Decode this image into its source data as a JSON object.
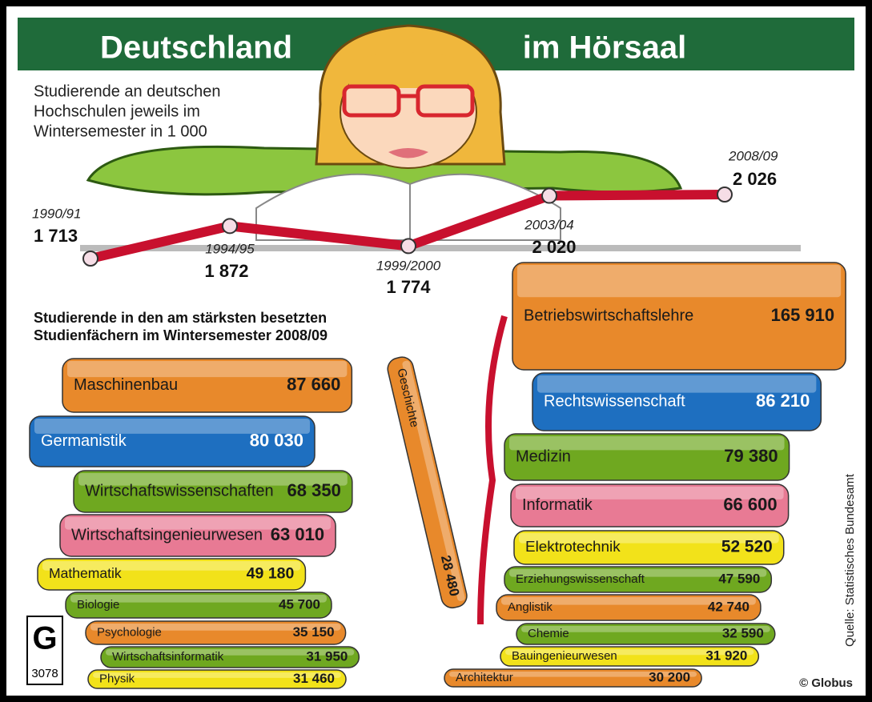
{
  "header": {
    "title_left": "Deutschland",
    "title_right": "im Hörsaal"
  },
  "source": "Quelle: Statistisches Bundesamt",
  "credit": "© Globus",
  "graphic_number": "3078",
  "chart_data": [
    {
      "type": "line",
      "subtitle": [
        "Studierende an deutschen",
        "Hochschulen jeweils im",
        "Wintersemester in 1 000"
      ],
      "categories": [
        "1990/91",
        "1994/95",
        "1999/2000",
        "2003/04",
        "2008/09"
      ],
      "values": [
        1713,
        1872,
        1774,
        2020,
        2026
      ],
      "value_labels": [
        "1 713",
        "1 872",
        "1 774",
        "2 020",
        "2 026"
      ],
      "color": "#c8102e"
    },
    {
      "type": "bar",
      "title": [
        "Studierende in den am stärksten besetzten",
        "Studienfächern im Wintersemester 2008/09"
      ],
      "categories": [
        "Maschinenbau",
        "Germanistik",
        "Wirtschaftswissenschaften",
        "Wirtschaftsingenieurwesen",
        "Mathematik",
        "Biologie",
        "Psychologie",
        "Wirtschaftsinformatik",
        "Physik",
        "Geschichte",
        "Betriebswirtschaftslehre",
        "Rechtswissenschaft",
        "Medizin",
        "Informatik",
        "Elektrotechnik",
        "Erziehungswissenschaft",
        "Anglistik",
        "Chemie",
        "Bauingenieurwesen",
        "Architektur"
      ],
      "values": [
        87660,
        80030,
        68350,
        63010,
        49180,
        45700,
        35150,
        31950,
        31460,
        28480,
        165910,
        86210,
        79380,
        66600,
        52520,
        47590,
        42740,
        32590,
        31920,
        30200
      ],
      "value_labels": [
        "87 660",
        "80 030",
        "68 350",
        "63 010",
        "49 180",
        "45 700",
        "35 150",
        "31 950",
        "31 460",
        "28 480",
        "165 910",
        "86 210",
        "79 380",
        "66 600",
        "52 520",
        "47 590",
        "42 740",
        "32 590",
        "31 920",
        "30 200"
      ],
      "colors": [
        "#e8892b",
        "#1e6fc0",
        "#6fa820",
        "#e87a94",
        "#f2e21a",
        "#6fa820",
        "#e8892b",
        "#6fa820",
        "#f2e21a",
        "#e8892b",
        "#e8892b",
        "#1e6fc0",
        "#6fa820",
        "#e87a94",
        "#f2e21a",
        "#6fa820",
        "#e8892b",
        "#6fa820",
        "#f2e21a",
        "#e8892b"
      ]
    }
  ]
}
